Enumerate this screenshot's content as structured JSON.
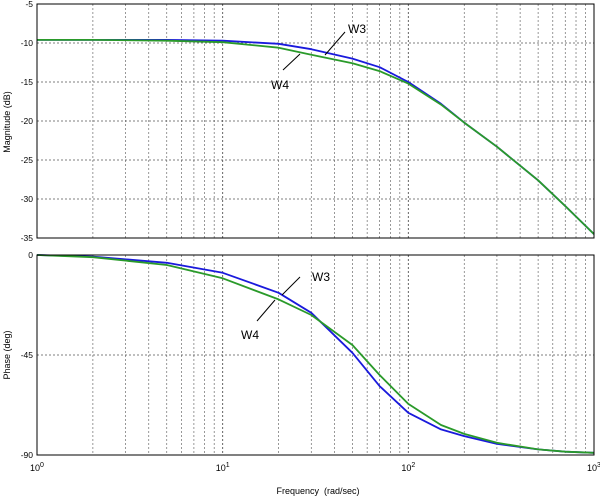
{
  "chart_data": [
    {
      "type": "line",
      "ylabel": "Magnitude (dB)",
      "xscale": "log",
      "xlim": [
        1,
        1000
      ],
      "ylim": [
        -35,
        -5
      ],
      "yticks": [
        -5,
        -10,
        -15,
        -20,
        -25,
        -30,
        -35
      ],
      "grid": true,
      "series": [
        {
          "name": "W3",
          "color": "#1a1adc",
          "x": [
            1,
            2,
            5,
            10,
            20,
            30,
            50,
            70,
            100,
            150,
            200,
            300,
            500,
            700,
            1000
          ],
          "y": [
            -9.6,
            -9.6,
            -9.6,
            -9.7,
            -10.1,
            -10.8,
            -12.0,
            -13.1,
            -15.0,
            -17.8,
            -20.2,
            -23.3,
            -27.6,
            -30.9,
            -34.5
          ]
        },
        {
          "name": "W4",
          "color": "#2a9a2a",
          "x": [
            1,
            2,
            5,
            10,
            20,
            30,
            50,
            70,
            100,
            150,
            200,
            300,
            500,
            700,
            1000
          ],
          "y": [
            -9.6,
            -9.6,
            -9.7,
            -9.9,
            -10.6,
            -11.5,
            -12.6,
            -13.6,
            -15.2,
            -17.9,
            -20.2,
            -23.3,
            -27.6,
            -30.9,
            -34.5
          ]
        }
      ],
      "annotations": [
        "W3",
        "W4"
      ]
    },
    {
      "type": "line",
      "xlabel": "Frequency  (rad/sec)",
      "ylabel": "Phase (deg)",
      "xscale": "log",
      "xlim": [
        1,
        1000
      ],
      "ylim": [
        -90,
        0
      ],
      "yticks": [
        0,
        -45,
        -90
      ],
      "xticks": [
        "10^0",
        "10^1",
        "10^2",
        "10^3"
      ],
      "grid": true,
      "series": [
        {
          "name": "W3",
          "color": "#1a1adc",
          "x": [
            1,
            2,
            5,
            10,
            20,
            30,
            50,
            70,
            100,
            150,
            200,
            300,
            500,
            700,
            1000
          ],
          "y": [
            0,
            -0.7,
            -3.5,
            -8.0,
            -17.0,
            -26.0,
            -44.0,
            -59.0,
            -71.0,
            -78.5,
            -81.5,
            -85.0,
            -87.5,
            -88.5,
            -89.0
          ]
        },
        {
          "name": "W4",
          "color": "#2a9a2a",
          "x": [
            1,
            2,
            5,
            10,
            20,
            30,
            50,
            70,
            100,
            150,
            200,
            300,
            500,
            700,
            1000
          ],
          "y": [
            0,
            -1.0,
            -4.5,
            -10.5,
            -20.0,
            -27.0,
            -40.5,
            -54.0,
            -67.0,
            -76.5,
            -80.5,
            -84.5,
            -87.5,
            -88.5,
            -89.0
          ]
        }
      ],
      "annotations": [
        "W3",
        "W4"
      ]
    }
  ]
}
